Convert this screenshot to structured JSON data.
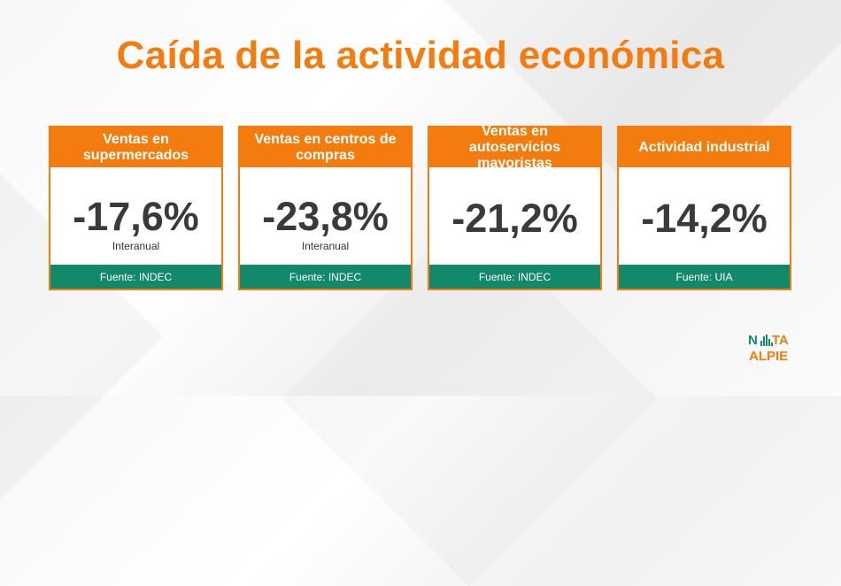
{
  "title": "Caída de la actividad económica",
  "chart_data": {
    "type": "table",
    "title": "Caída de la actividad económica",
    "cards": [
      {
        "label": "Ventas en supermercados",
        "value": -17.6,
        "display": "-17,6%",
        "note": "Interanual",
        "source": "Fuente: INDEC"
      },
      {
        "label": "Ventas en centros de compras",
        "value": -23.8,
        "display": "-23,8%",
        "note": "Interanual",
        "source": "Fuente: INDEC"
      },
      {
        "label": "Ventas en autoservicios mayoristas",
        "value": -21.2,
        "display": "-21,2%",
        "note": "",
        "source": "Fuente: INDEC"
      },
      {
        "label": "Actividad industrial",
        "value": -14.2,
        "display": "-14,2%",
        "note": "",
        "source": "Fuente: UIA"
      }
    ]
  },
  "logo": {
    "line1_a": "N",
    "line1_b": "TA",
    "line2": "ALPIE"
  },
  "colors": {
    "accent": "#f47c0e",
    "footer": "#12896b",
    "value_text": "#3a3a3a"
  }
}
